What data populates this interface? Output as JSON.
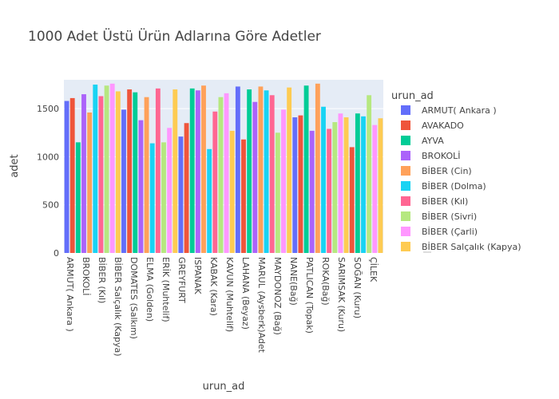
{
  "chart_data": {
    "type": "bar",
    "title": "1000 Adet Üstü Ürün Adlarına Göre Adetler",
    "xlabel": "urun_ad",
    "ylabel": "adet",
    "ylim": [
      0,
      1800
    ],
    "yticks": [
      0,
      500,
      1000,
      1500
    ],
    "grid": true,
    "legend_position": "right",
    "legend_title": "urun_ad",
    "x_tick_labels": [
      "ARMUT( Ankara )",
      "BROKOLİ",
      "BİBER (Kıl)",
      "BİBER Salçalık (Kapya)",
      "DOMATES (Salkım)",
      "ELMA (Golden)",
      "ERİK (Muhtelif)",
      "GREYFURT",
      "ISPANAK",
      "KABAK (Kara)",
      "KAVUN (Muhtelif)",
      "LAHANA (Beyaz)",
      "MARUL (Aysberk)Adet",
      "MAYDONOZ (Bağ)",
      "NANE(Bağ)",
      "PATLICAN (Topak)",
      "ROKA(Bağ)",
      "SARIMSAK (Kuru)",
      "SOĞAN (Kuru)",
      "ÇİLEK"
    ],
    "series": [
      {
        "name": "ARMUT( Ankara )",
        "values": [
          1580,
          1490,
          1210,
          1730,
          1410
        ]
      },
      {
        "name": "AVAKADO",
        "values": [
          1610,
          1700,
          1350,
          1180,
          1430,
          1100
        ]
      },
      {
        "name": "AYVA",
        "values": [
          1150,
          1670,
          1710,
          1700,
          1740,
          1450
        ]
      },
      {
        "name": "BROKOLİ",
        "values": [
          1650,
          1380,
          1690,
          1570,
          1270
        ]
      },
      {
        "name": "BİBER (Cin)",
        "values": [
          1460,
          1620,
          1740,
          1730,
          1760
        ]
      },
      {
        "name": "BİBER (Dolma)",
        "values": [
          1750,
          1140,
          1080,
          1690,
          1520,
          1420
        ]
      },
      {
        "name": "BİBER (Kıl)",
        "values": [
          1630,
          1710,
          1470,
          1640,
          1290
        ]
      },
      {
        "name": "BİBER (Sivri)",
        "values": [
          1740,
          1150,
          1620,
          1250,
          1360,
          1640
        ]
      },
      {
        "name": "BİBER (Çarli)",
        "values": [
          1760,
          1300,
          1660,
          1490,
          1450,
          1330
        ]
      },
      {
        "name": "BİBER Salçalık (Kapya)",
        "values": [
          1680,
          1700,
          1270,
          1720,
          1410,
          1400
        ]
      }
    ],
    "colors": [
      "#636efa",
      "#EF553B",
      "#00cc96",
      "#ab63fa",
      "#FFA15A",
      "#19d3f3",
      "#FF6692",
      "#B6E880",
      "#FF97FF",
      "#FECB52"
    ]
  }
}
